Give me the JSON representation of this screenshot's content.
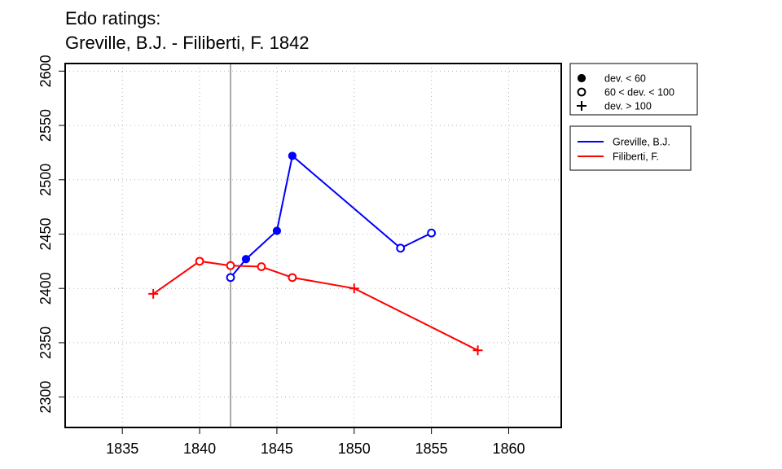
{
  "chart_data": {
    "type": "line",
    "title": "Edo ratings:",
    "subtitle": "Greville, B.J. - Filiberti, F. 1842",
    "xlabel": "",
    "ylabel": "",
    "xlim": [
      1831.3,
      1863.4
    ],
    "ylim": [
      2272,
      2607
    ],
    "xticks": [
      1835,
      1840,
      1845,
      1850,
      1855,
      1860
    ],
    "yticks": [
      2300,
      2350,
      2400,
      2450,
      2500,
      2550,
      2600
    ],
    "grid": true,
    "marker_line_year": 1842,
    "series": [
      {
        "name": "Greville, B.J.",
        "color": "#0000ff",
        "points": [
          {
            "x": 1842,
            "y": 2410,
            "marker": "open"
          },
          {
            "x": 1843,
            "y": 2427,
            "marker": "filled"
          },
          {
            "x": 1845,
            "y": 2453,
            "marker": "filled"
          },
          {
            "x": 1846,
            "y": 2522,
            "marker": "filled"
          },
          {
            "x": 1853,
            "y": 2437,
            "marker": "open"
          },
          {
            "x": 1855,
            "y": 2451,
            "marker": "open"
          }
        ]
      },
      {
        "name": "Filiberti, F.",
        "color": "#ff0000",
        "points": [
          {
            "x": 1837,
            "y": 2395,
            "marker": "plus"
          },
          {
            "x": 1840,
            "y": 2425,
            "marker": "open"
          },
          {
            "x": 1842,
            "y": 2421,
            "marker": "open"
          },
          {
            "x": 1844,
            "y": 2420,
            "marker": "open"
          },
          {
            "x": 1846,
            "y": 2410,
            "marker": "open"
          },
          {
            "x": 1850,
            "y": 2400,
            "marker": "plus"
          },
          {
            "x": 1858,
            "y": 2343,
            "marker": "plus"
          }
        ]
      }
    ],
    "legend_markers": [
      {
        "symbol": "filled",
        "label": "dev. < 60"
      },
      {
        "symbol": "open",
        "label": "60 < dev. < 100"
      },
      {
        "symbol": "plus",
        "label": "dev. > 100"
      }
    ],
    "legend_placement": "right"
  }
}
